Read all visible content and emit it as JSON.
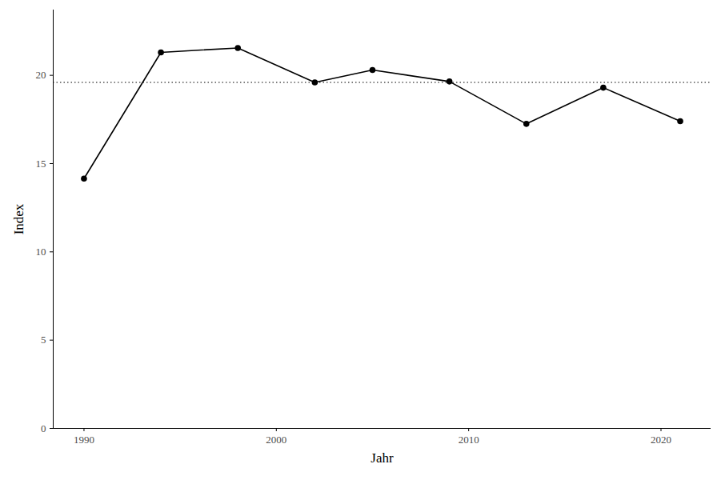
{
  "chart_data": {
    "type": "line",
    "x_label": "Jahr",
    "y_label": "Index",
    "x": [
      1990,
      1994,
      1998,
      2002,
      2005,
      2009,
      2013,
      2017,
      2021
    ],
    "values": [
      14.15,
      21.3,
      21.55,
      19.6,
      20.3,
      19.65,
      17.25,
      19.3,
      17.4
    ],
    "color": "#000000",
    "marker": "circle",
    "line_style": "solid",
    "reference_line": 19.6,
    "xlim": [
      1988.4,
      2022.6
    ],
    "xticks": [
      1990,
      2000,
      2010,
      2020
    ],
    "ylim": [
      0,
      23.7
    ],
    "yticks": [
      0,
      5,
      10,
      15,
      20
    ],
    "grid": false
  }
}
